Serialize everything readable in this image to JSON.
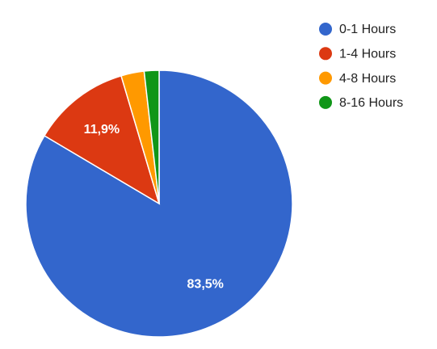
{
  "chart_data": {
    "type": "pie",
    "categories": [
      "0-1 Hours",
      "1-4 Hours",
      "4-8 Hours",
      "8-16 Hours"
    ],
    "values": [
      83.5,
      11.9,
      2.8,
      1.8
    ],
    "value_labels": [
      "83,5%",
      "11,9%",
      null,
      null
    ],
    "colors": [
      "#3366cc",
      "#dc3912",
      "#ff9900",
      "#109618"
    ],
    "legend": "right"
  }
}
